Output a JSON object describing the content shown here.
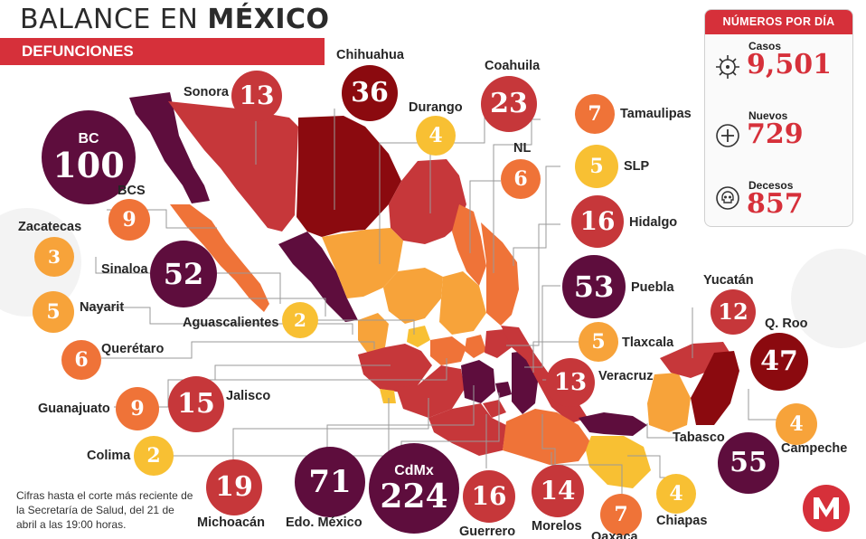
{
  "header": {
    "title_light": "BALANCE EN ",
    "title_bold": "MÉXICO",
    "subtitle": "DEFUNCIONES"
  },
  "panel": {
    "title": "NÚMEROS POR DÍA",
    "stats": [
      {
        "label": "Casos",
        "value": "9,501",
        "icon": "virus-icon"
      },
      {
        "label": "Nuevos",
        "value": "729",
        "icon": "plus-circle-icon"
      },
      {
        "label": "Decesos",
        "value": "857",
        "icon": "skull-icon"
      }
    ]
  },
  "note": "Cifras hasta el corte más reciente de la Secretaría de Salud, del 21 de abril a las 19:00 horas.",
  "colors": {
    "accent": "#d6303a",
    "darkest": "#5e0d3d",
    "dark": "#8b0a0f",
    "red": "#c6373a",
    "orange": "#ef7338",
    "amber": "#f7a33a",
    "yellow": "#f8c033",
    "panel_header": "#d6303a"
  },
  "states": [
    {
      "name": "Baja California",
      "label": "BC",
      "deaths": 100
    },
    {
      "name": "Sonora",
      "label": "Sonora",
      "deaths": 13
    },
    {
      "name": "Chihuahua",
      "label": "Chihuahua",
      "deaths": 36
    },
    {
      "name": "Coahuila",
      "label": "Coahuila",
      "deaths": 23
    },
    {
      "name": "Durango",
      "label": "Durango",
      "deaths": 4
    },
    {
      "name": "Tamaulipas",
      "label": "Tamaulipas",
      "deaths": 7
    },
    {
      "name": "Nuevo León",
      "label": "NL",
      "deaths": 6
    },
    {
      "name": "San Luis Potosí",
      "label": "SLP",
      "deaths": 5
    },
    {
      "name": "Hidalgo",
      "label": "Hidalgo",
      "deaths": 16
    },
    {
      "name": "Baja California Sur",
      "label": "BCS",
      "deaths": 9
    },
    {
      "name": "Zacatecas",
      "label": "Zacatecas",
      "deaths": 3
    },
    {
      "name": "Sinaloa",
      "label": "Sinaloa",
      "deaths": 52
    },
    {
      "name": "Puebla",
      "label": "Puebla",
      "deaths": 53
    },
    {
      "name": "Yucatán",
      "label": "Yucatán",
      "deaths": 12
    },
    {
      "name": "Nayarit",
      "label": "Nayarit",
      "deaths": 5
    },
    {
      "name": "Aguascalientes",
      "label": "Aguascalientes",
      "deaths": 2
    },
    {
      "name": "Quintana Roo",
      "label": "Q. Roo",
      "deaths": 47
    },
    {
      "name": "Tlaxcala",
      "label": "Tlaxcala",
      "deaths": 5
    },
    {
      "name": "Querétaro",
      "label": "Querétaro",
      "deaths": 6
    },
    {
      "name": "Veracruz",
      "label": "Veracruz",
      "deaths": 13
    },
    {
      "name": "Guanajuato",
      "label": "Guanajuato",
      "deaths": 9
    },
    {
      "name": "Jalisco",
      "label": "Jalisco",
      "deaths": 15
    },
    {
      "name": "Campeche",
      "label": "Campeche",
      "deaths": 4
    },
    {
      "name": "Tabasco",
      "label": "Tabasco",
      "deaths": 55
    },
    {
      "name": "Colima",
      "label": "Colima",
      "deaths": 2
    },
    {
      "name": "Ciudad de México",
      "label": "CdMx",
      "deaths": 224
    },
    {
      "name": "Michoacán",
      "label": "Michoacán",
      "deaths": 19
    },
    {
      "name": "Estado de México",
      "label": "Edo. México",
      "deaths": 71
    },
    {
      "name": "Guerrero",
      "label": "Guerrero",
      "deaths": 16
    },
    {
      "name": "Morelos",
      "label": "Morelos",
      "deaths": 14
    },
    {
      "name": "Oaxaca",
      "label": "Oaxaca",
      "deaths": 7
    },
    {
      "name": "Chiapas",
      "label": "Chiapas",
      "deaths": 4
    }
  ]
}
